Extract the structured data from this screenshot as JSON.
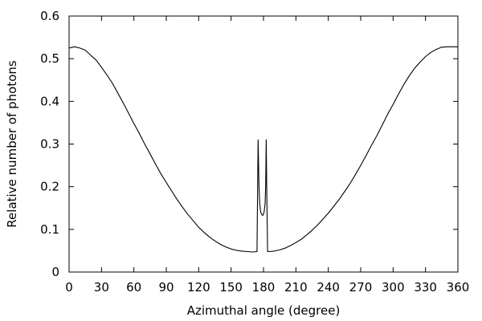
{
  "chart_data": {
    "type": "line",
    "xlabel": "Azimuthal angle (degree)",
    "ylabel": "Relative number of photons",
    "xlim": [
      0,
      360
    ],
    "ylim": [
      0,
      0.6
    ],
    "xticks": [
      "0",
      "30",
      "60",
      "90",
      "120",
      "150",
      "180",
      "210",
      "240",
      "270",
      "300",
      "330",
      "360"
    ],
    "yticks": [
      "0",
      "0.1",
      "0.2",
      "0.3",
      "0.4",
      "0.5",
      "0.6"
    ],
    "grid": false,
    "legend": "none",
    "series": [
      {
        "color": "#000000",
        "x": [
          0,
          5,
          10,
          15,
          20,
          25,
          30,
          35,
          40,
          45,
          50,
          55,
          60,
          65,
          70,
          75,
          80,
          85,
          90,
          95,
          100,
          105,
          110,
          115,
          120,
          125,
          130,
          135,
          140,
          145,
          150,
          155,
          160,
          165,
          170,
          174,
          175,
          175.8,
          176.5,
          177.5,
          178.5,
          179.5,
          180.5,
          181.5,
          182,
          182.5,
          183,
          183.8,
          185,
          190,
          195,
          200,
          205,
          210,
          215,
          220,
          225,
          230,
          235,
          240,
          245,
          250,
          255,
          260,
          265,
          270,
          275,
          280,
          285,
          290,
          295,
          300,
          305,
          310,
          315,
          320,
          325,
          330,
          335,
          340,
          345,
          350,
          355,
          360
        ],
        "y": [
          0.525,
          0.528,
          0.525,
          0.52,
          0.508,
          0.497,
          0.48,
          0.462,
          0.443,
          0.42,
          0.397,
          0.373,
          0.348,
          0.325,
          0.3,
          0.277,
          0.253,
          0.23,
          0.21,
          0.19,
          0.17,
          0.152,
          0.135,
          0.12,
          0.105,
          0.093,
          0.082,
          0.073,
          0.065,
          0.059,
          0.054,
          0.051,
          0.049,
          0.048,
          0.047,
          0.048,
          0.31,
          0.2,
          0.16,
          0.14,
          0.134,
          0.133,
          0.14,
          0.16,
          0.2,
          0.31,
          0.2,
          0.048,
          0.048,
          0.049,
          0.052,
          0.056,
          0.062,
          0.069,
          0.077,
          0.087,
          0.098,
          0.11,
          0.124,
          0.138,
          0.154,
          0.17,
          0.188,
          0.207,
          0.228,
          0.25,
          0.273,
          0.297,
          0.32,
          0.345,
          0.37,
          0.393,
          0.417,
          0.44,
          0.46,
          0.478,
          0.492,
          0.505,
          0.515,
          0.522,
          0.527,
          0.528,
          0.528,
          0.528
        ]
      }
    ]
  }
}
